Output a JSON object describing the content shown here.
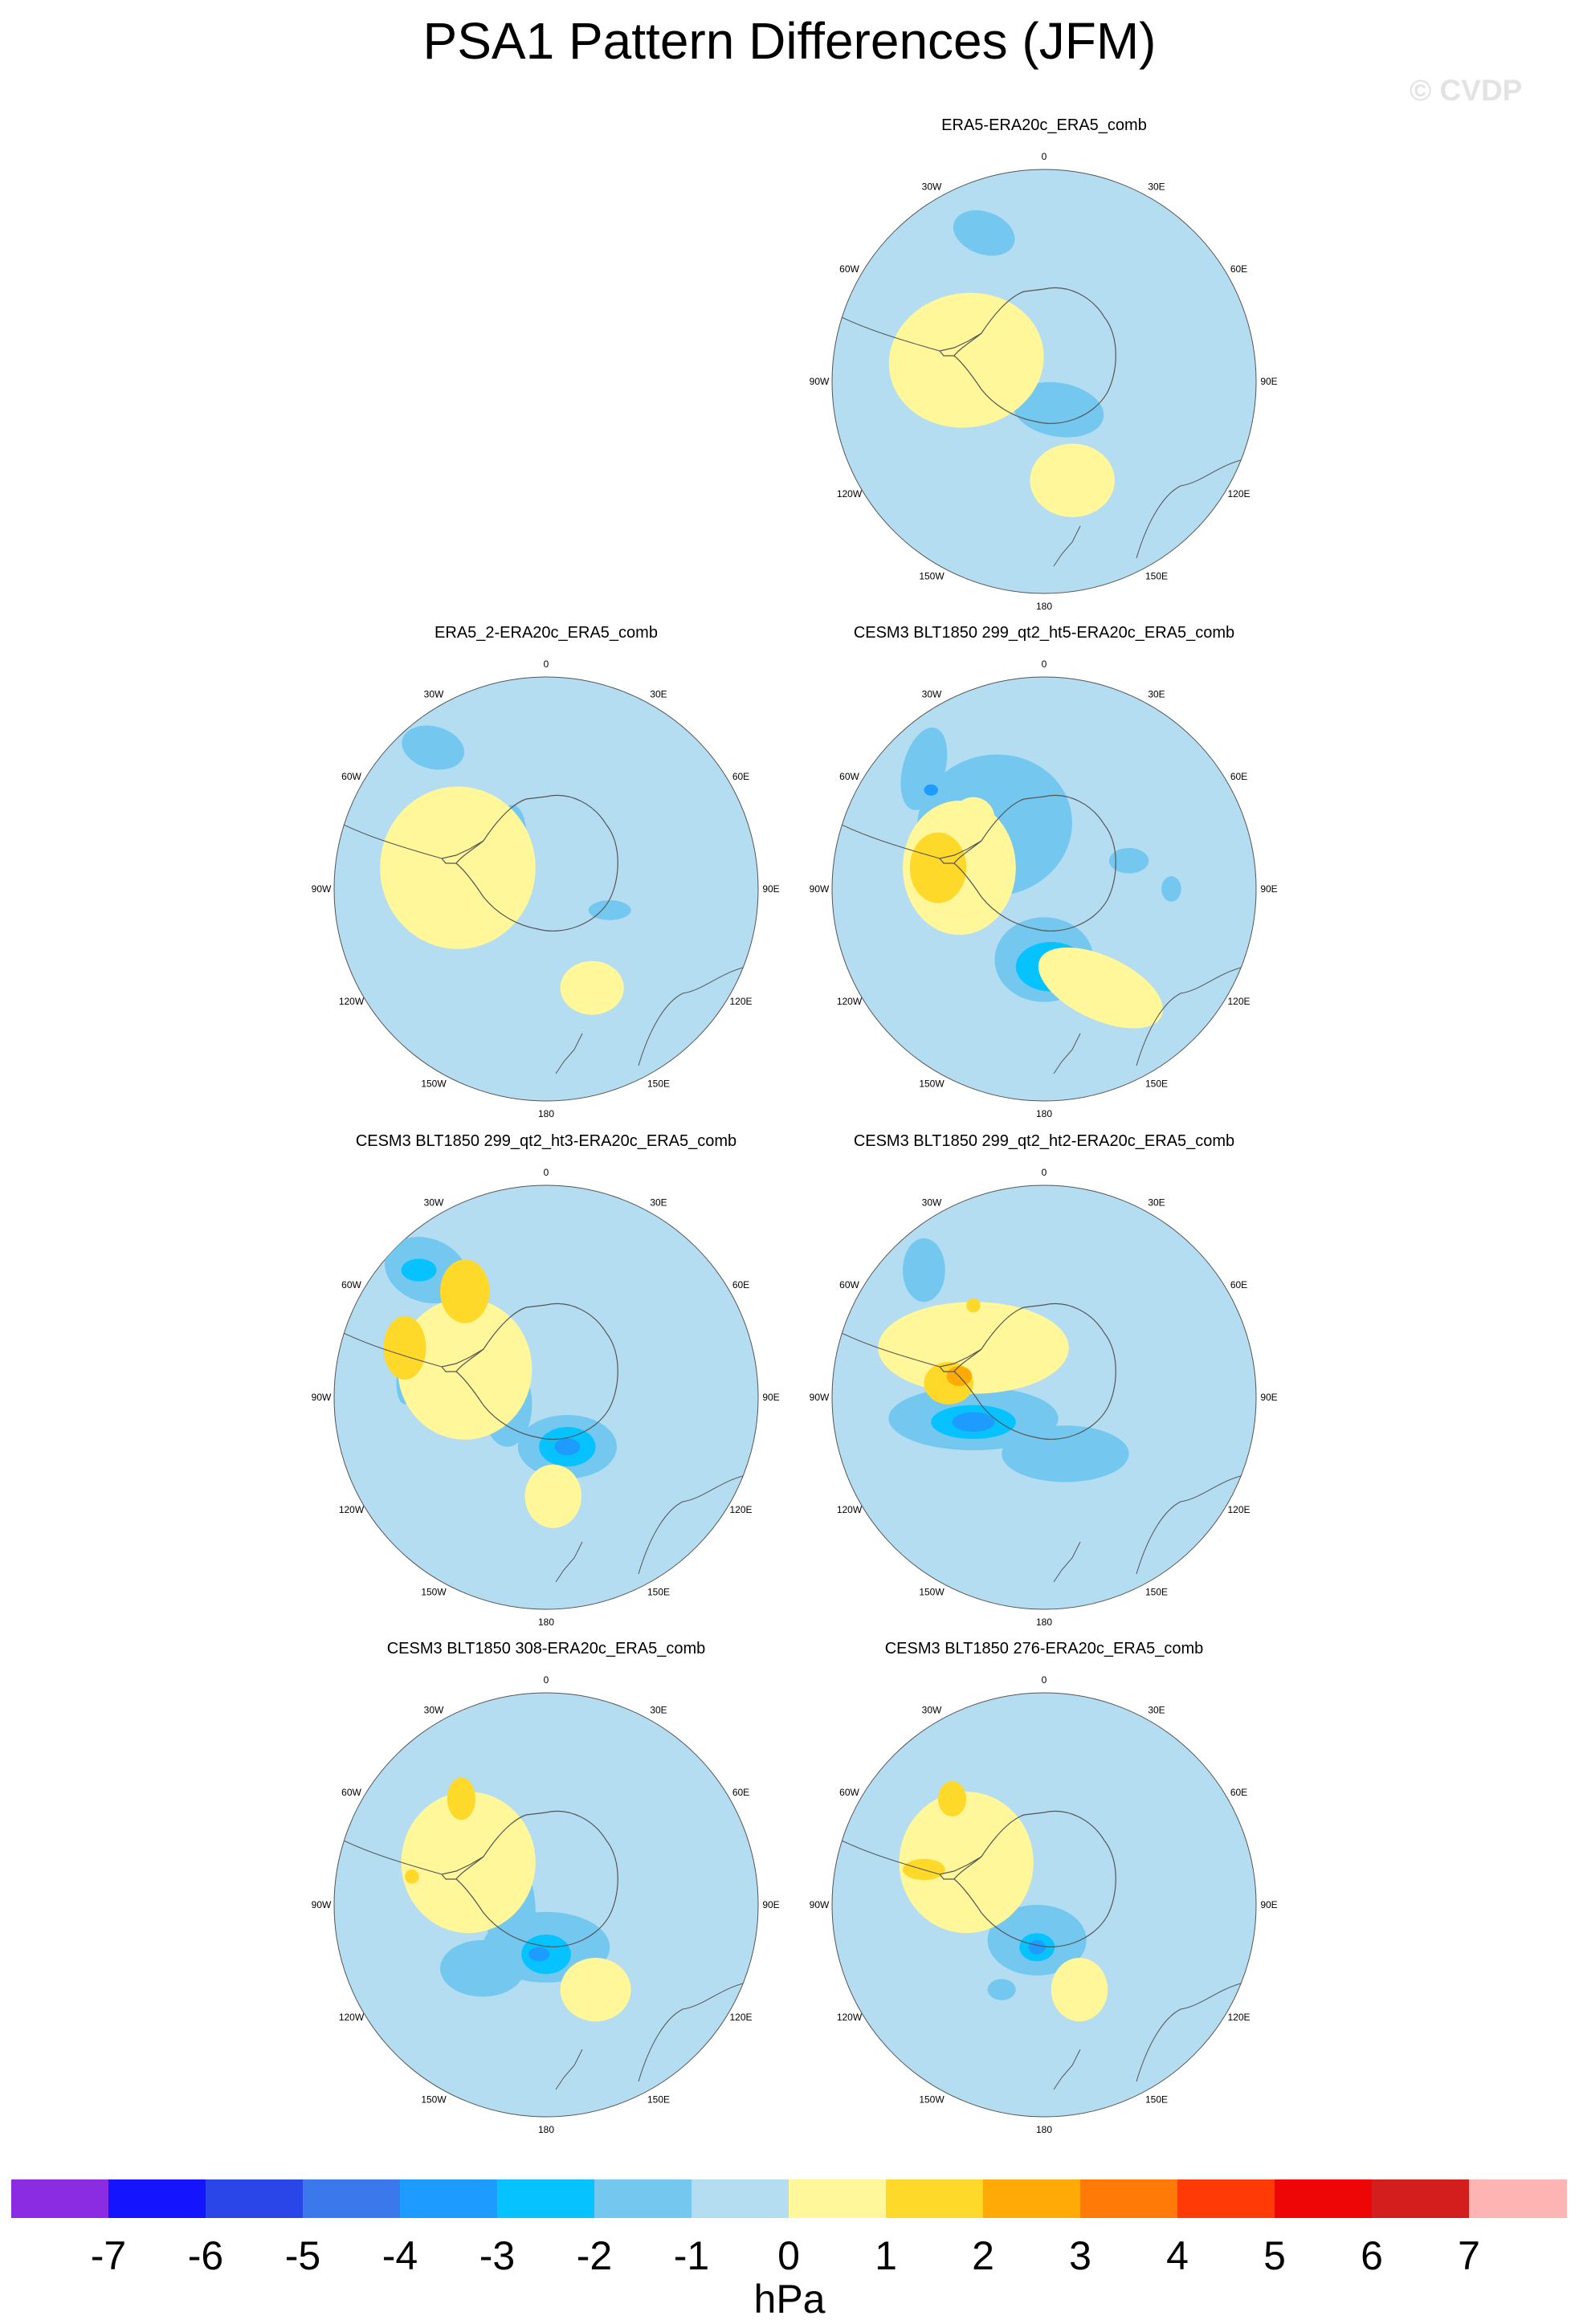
{
  "title": "PSA1 Pattern Differences (JFM)",
  "watermark": "© CVDP",
  "lon_labels": [
    "0",
    "30E",
    "60E",
    "90E",
    "120E",
    "150E",
    "180",
    "150W",
    "120W",
    "90W",
    "60W",
    "30W"
  ],
  "panels": [
    {
      "title": "ERA5-ERA20c_ERA5_comb"
    },
    {
      "title": "ERA5_2-ERA20c_ERA5_comb"
    },
    {
      "title": "CESM3 BLT1850 299_qt2_ht5-ERA20c_ERA5_comb"
    },
    {
      "title": "CESM3 BLT1850 299_qt2_ht3-ERA20c_ERA5_comb"
    },
    {
      "title": "CESM3 BLT1850 299_qt2_ht2-ERA20c_ERA5_comb"
    },
    {
      "title": "CESM3 BLT1850 308-ERA20c_ERA5_comb"
    },
    {
      "title": "CESM3 BLT1850 276-ERA20c_ERA5_comb"
    }
  ],
  "colorbar": {
    "units": "hPa",
    "tick_labels": [
      "-7",
      "-6",
      "-5",
      "-4",
      "-3",
      "-2",
      "-1",
      "0",
      "1",
      "2",
      "3",
      "4",
      "5",
      "6",
      "7"
    ],
    "colors": [
      "#8b2be2",
      "#1414ff",
      "#2a45e8",
      "#3a78ec",
      "#1e9bff",
      "#06c2ff",
      "#74c8f0",
      "#b4ddf2",
      "#fff79a",
      "#ffd92a",
      "#ffaa06",
      "#ff7a06",
      "#ff3a06",
      "#ee0506",
      "#d41e1e",
      "#ffb4b4"
    ]
  },
  "colors": {
    "ocean_base": "#b4ddf2",
    "neg1": "#74c8f0",
    "neg2": "#06c2ff",
    "neg3": "#1e9bff",
    "pos1": "#fff79a",
    "pos2": "#ffd92a",
    "pos3": "#ffaa06",
    "coast": "#555555"
  }
}
